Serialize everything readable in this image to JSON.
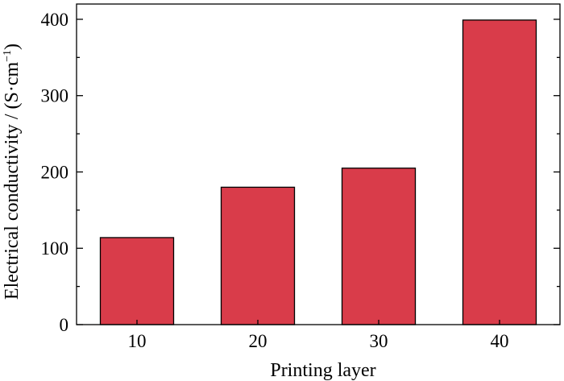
{
  "chart_data": {
    "type": "bar",
    "categories": [
      "10",
      "20",
      "30",
      "40"
    ],
    "values": [
      114,
      180,
      205,
      399
    ],
    "xlabel": "Printing layer",
    "ylabel": "Electrical conductivity / (S·cm",
    "ylabel_superscript": "−1",
    "ylabel_suffix": ")",
    "ylim": [
      0,
      420
    ],
    "yticks": [
      "0",
      "100",
      "200",
      "300",
      "400"
    ],
    "grid": false,
    "legend": "none",
    "colors": {
      "bar": "#d93c4a",
      "bar_stroke": "#000000",
      "axis": "#000000"
    }
  }
}
